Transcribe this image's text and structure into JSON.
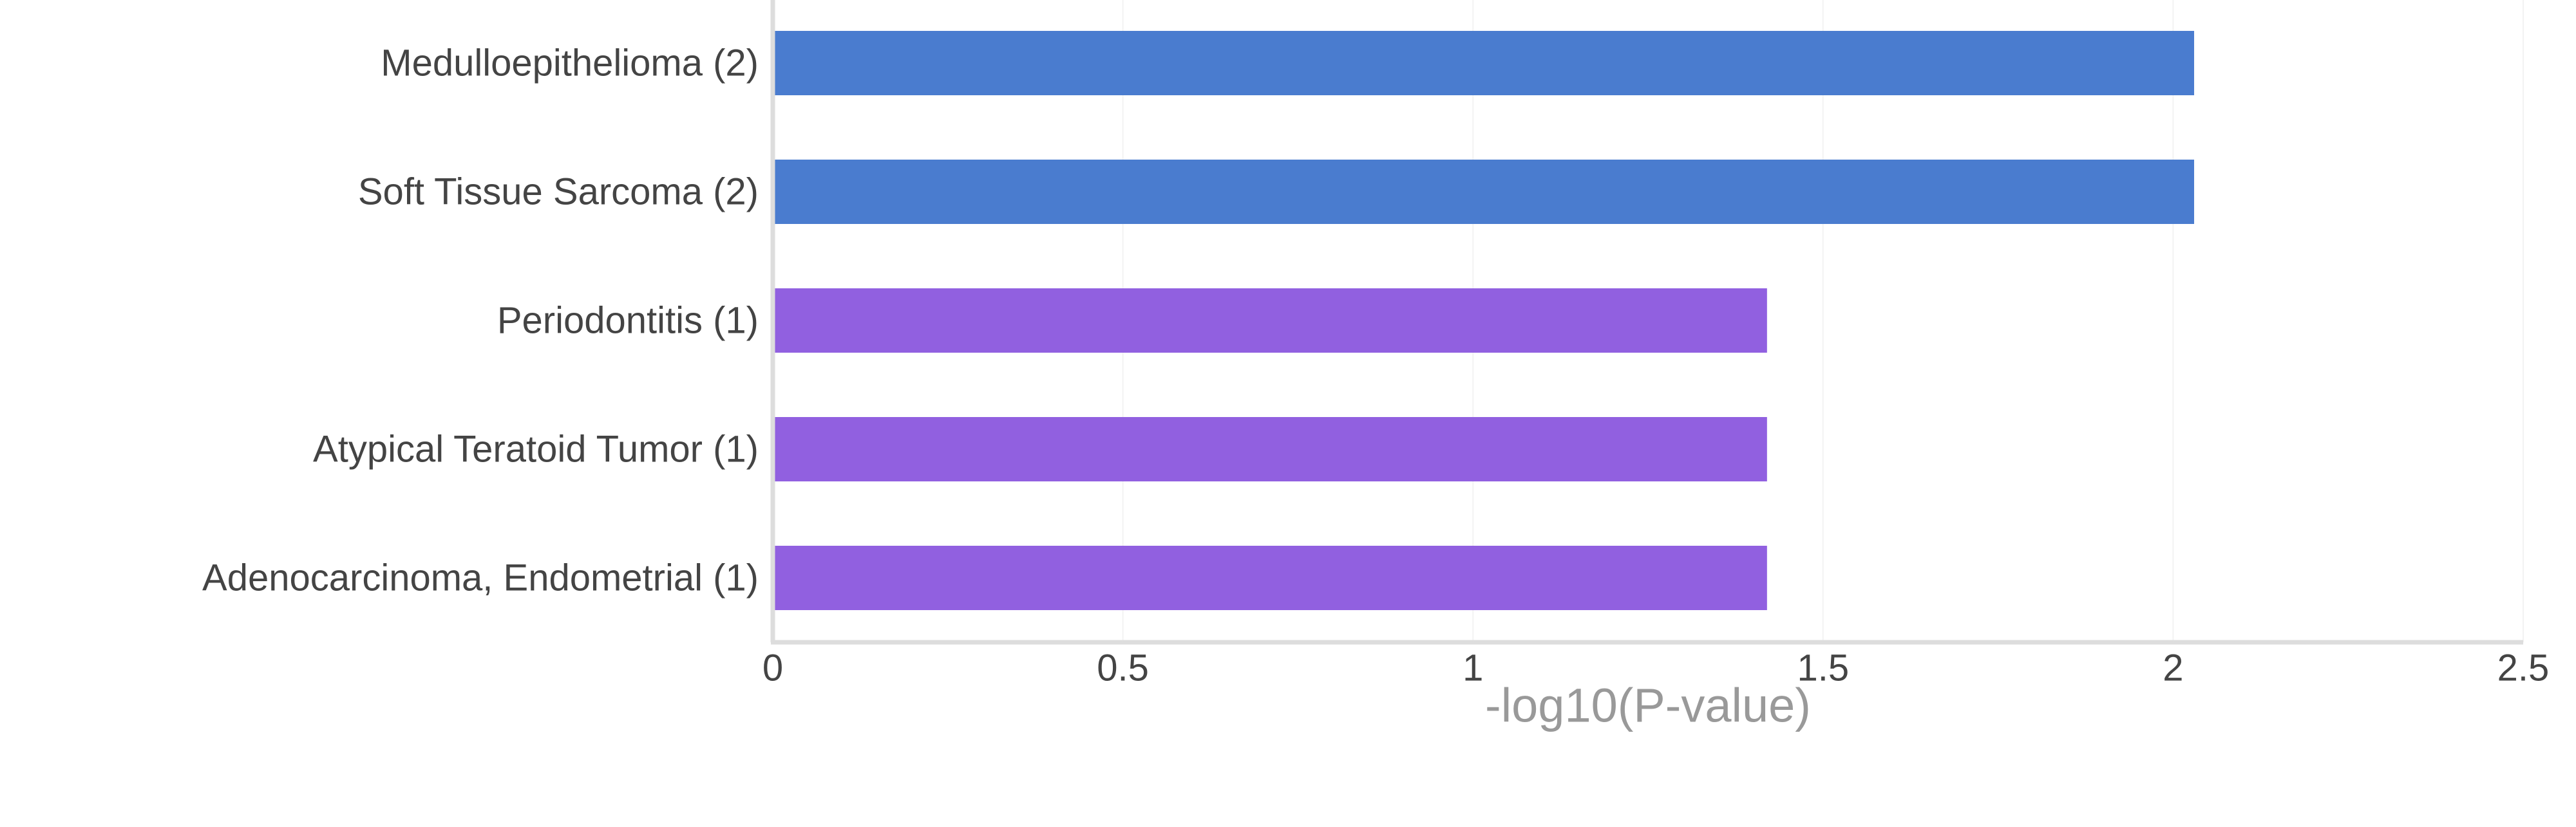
{
  "chart_data": {
    "type": "bar",
    "orientation": "horizontal",
    "categories": [
      "Medulloepithelioma (2)",
      "Soft Tissue Sarcoma (2)",
      "Periodontitis (1)",
      "Atypical Teratoid Tumor (1)",
      "Adenocarcinoma, Endometrial (1)"
    ],
    "values": [
      2.03,
      2.03,
      1.42,
      1.42,
      1.42
    ],
    "bar_colors": [
      "#4a7ccf",
      "#4a7ccf",
      "#9160e0",
      "#9160e0",
      "#9160e0"
    ],
    "xlabel": "-log10(P-value)",
    "ylabel": "",
    "xlim": [
      0,
      2.5
    ],
    "xticks": [
      0,
      0.5,
      1,
      1.5,
      2,
      2.5
    ],
    "xtick_labels": [
      "0",
      "0.5",
      "1",
      "1.5",
      "2",
      "2.5"
    ],
    "grid": true,
    "colors": {
      "axis": "#dddddd",
      "grid": "#f3f3f3",
      "tick_label": "#444444",
      "category_label": "#444444",
      "axis_title": "#999999"
    }
  }
}
